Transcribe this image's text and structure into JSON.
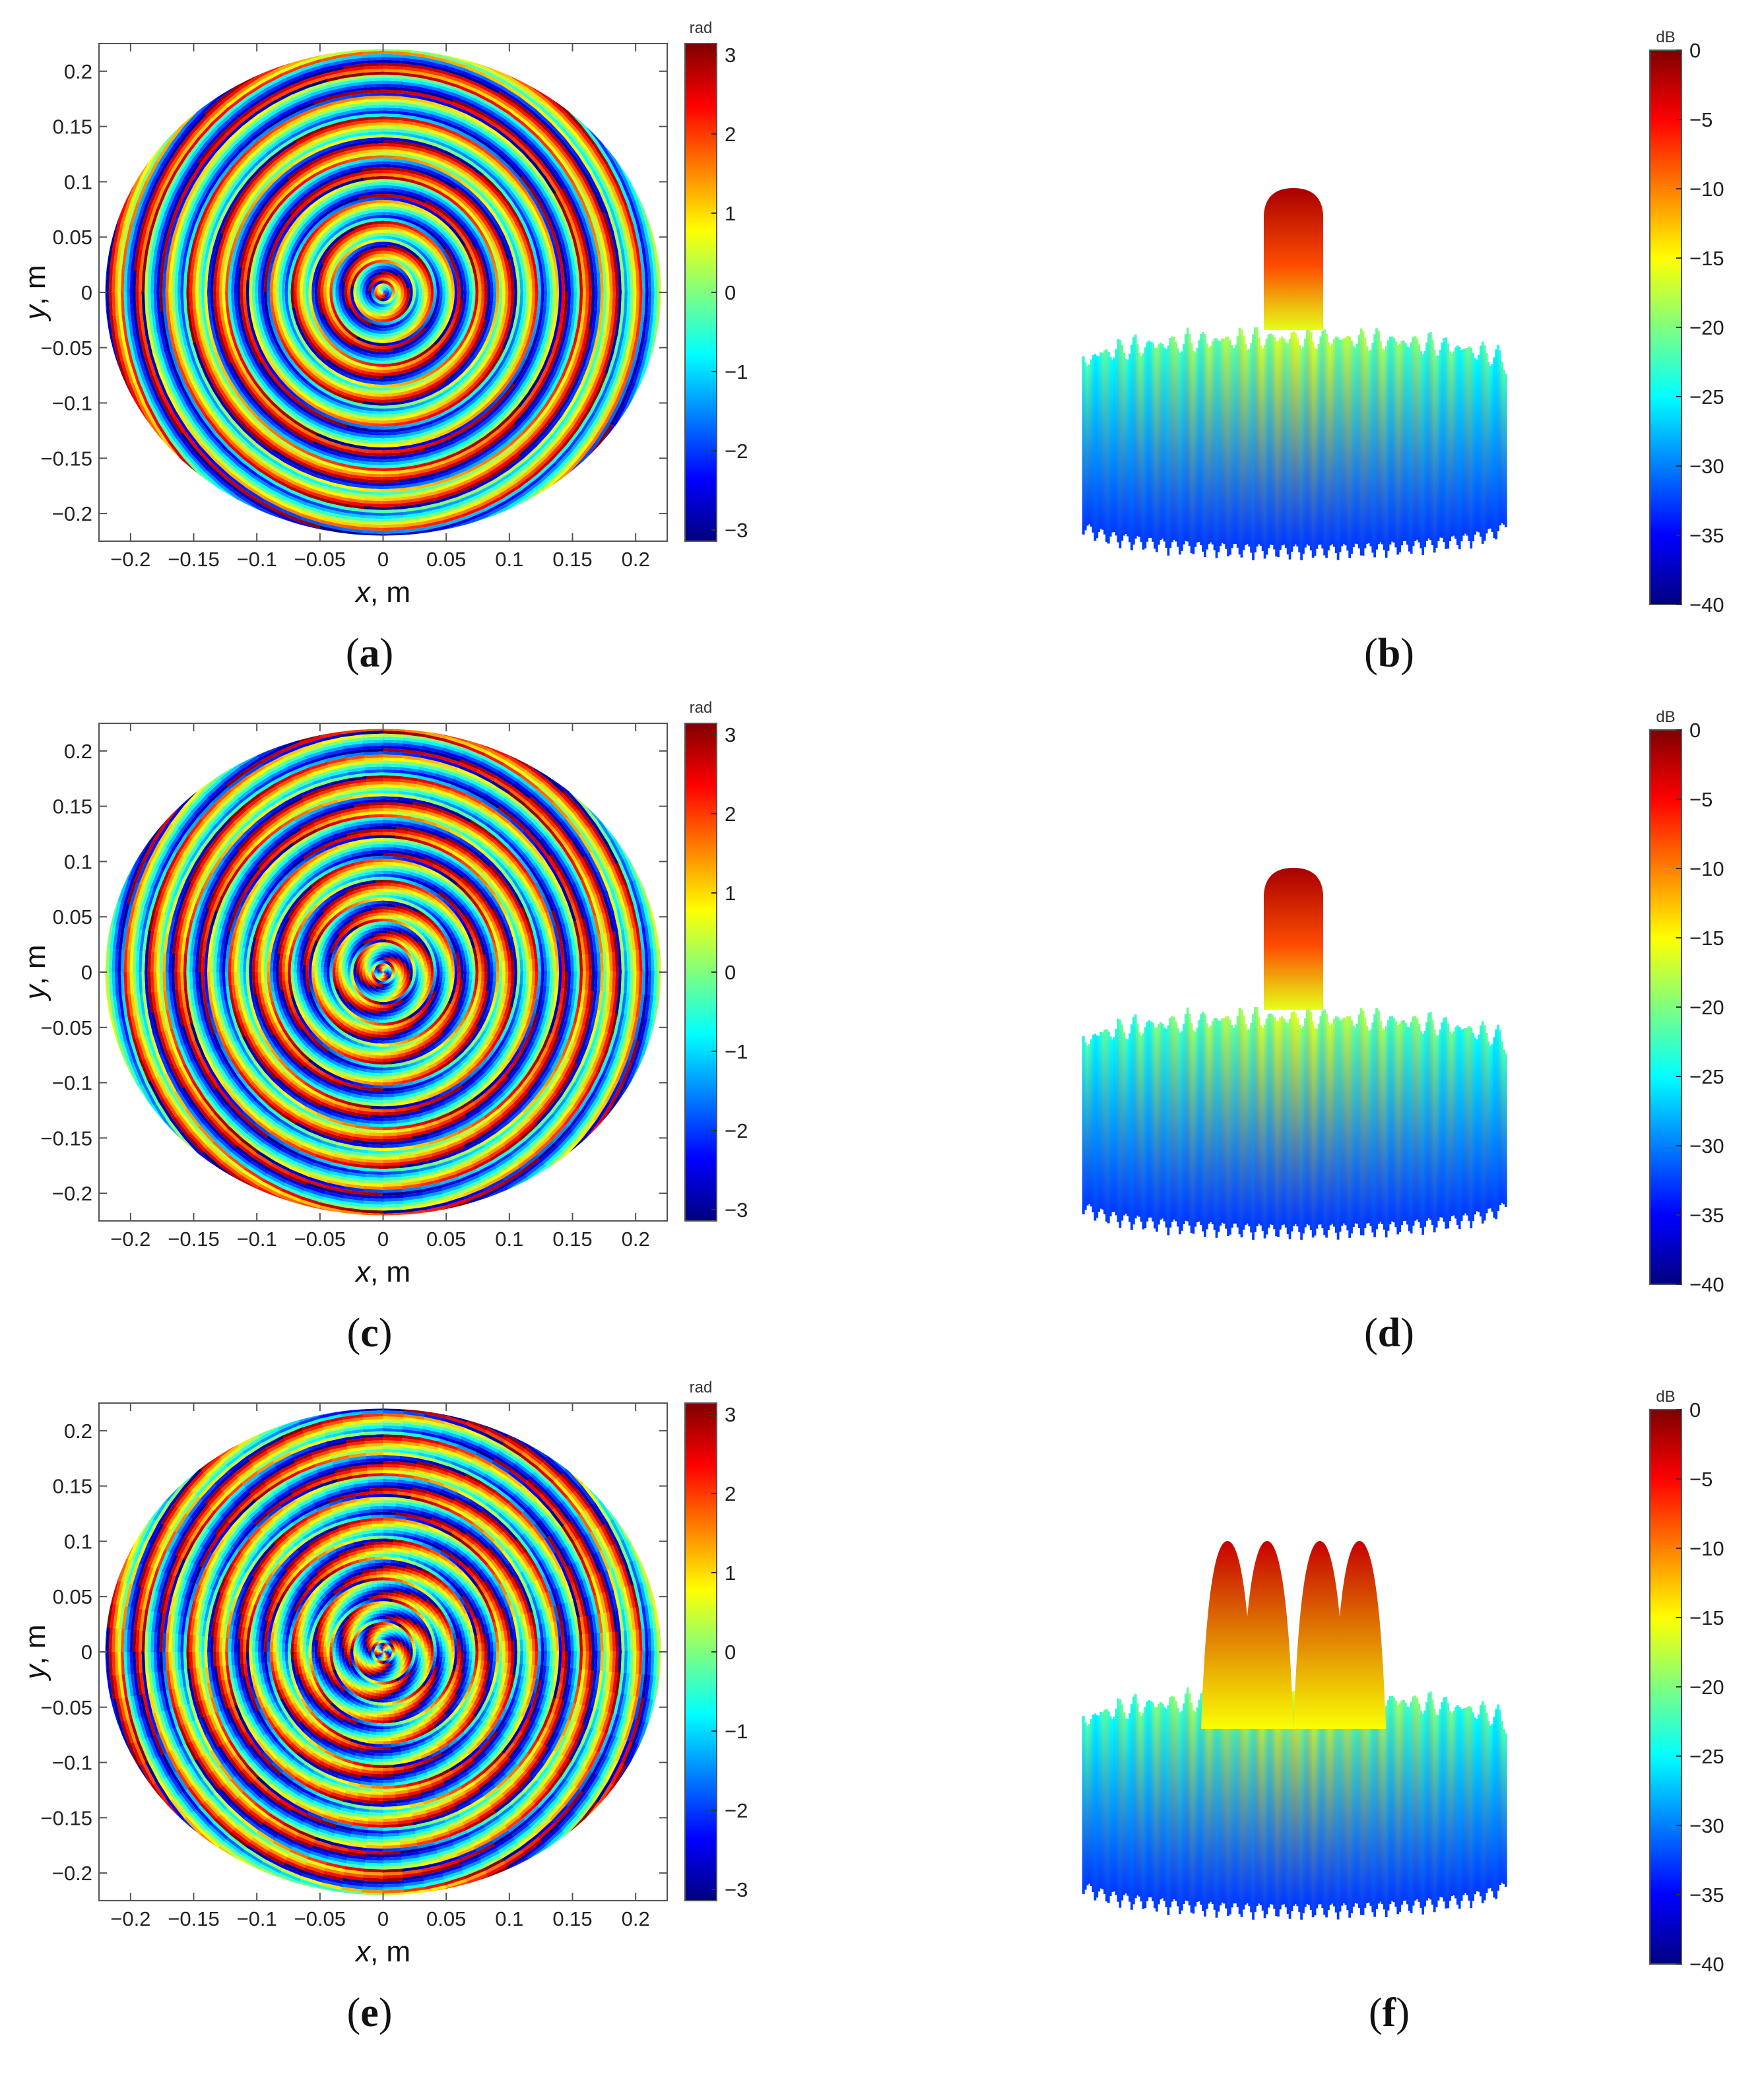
{
  "colors": {
    "jet": [
      "#00007f",
      "#0000ff",
      "#007fff",
      "#00ffff",
      "#7fff7f",
      "#ffff00",
      "#ff7f00",
      "#ff0000",
      "#7f0000"
    ],
    "axis": "#555555",
    "text": "#222222"
  },
  "chart_data": [
    {
      "type": "heatmap",
      "panel_label": "a",
      "xlabel_var": "x",
      "xlabel_unit": ", m",
      "ylabel_var": "y",
      "ylabel_unit": ", m",
      "xlim": [
        -0.225,
        0.225
      ],
      "ylim": [
        -0.225,
        0.225
      ],
      "xticks": [
        "-0.2",
        "-0.15",
        "-0.1",
        "-0.05",
        "0",
        "0.05",
        "0.1",
        "0.15",
        "0.2"
      ],
      "yticks": [
        "0.2",
        "0.15",
        "0.1",
        "0.05",
        "0",
        "-0.05",
        "-0.1",
        "-0.15",
        "-0.2"
      ],
      "colorbar_unit": "rad",
      "colorbar_range": [
        -3.14159,
        3.14159
      ],
      "colorbar_ticks": [
        "3",
        "2",
        "1",
        "0",
        "-1",
        "-2",
        "-3"
      ],
      "aperture_radius_m": 0.22,
      "spiral_arms": 1
    },
    {
      "type": "surface",
      "panel_label": "b",
      "colorbar_unit": "dB",
      "colorbar_range": [
        -40,
        0
      ],
      "colorbar_ticks": [
        "0",
        "-5",
        "-10",
        "-15",
        "-20",
        "-25",
        "-30",
        "-35",
        "-40"
      ],
      "peak_lobes": 1
    },
    {
      "type": "heatmap",
      "panel_label": "c",
      "xlabel_var": "x",
      "xlabel_unit": ", m",
      "ylabel_var": "y",
      "ylabel_unit": ", m",
      "xlim": [
        -0.225,
        0.225
      ],
      "ylim": [
        -0.225,
        0.225
      ],
      "xticks": [
        "-0.2",
        "-0.15",
        "-0.1",
        "-0.05",
        "0",
        "0.05",
        "0.1",
        "0.15",
        "0.2"
      ],
      "yticks": [
        "0.2",
        "0.15",
        "0.1",
        "0.05",
        "0",
        "-0.05",
        "-0.1",
        "-0.15",
        "-0.2"
      ],
      "colorbar_unit": "rad",
      "colorbar_range": [
        -3.14159,
        3.14159
      ],
      "colorbar_ticks": [
        "3",
        "2",
        "1",
        "0",
        "-1",
        "-2",
        "-3"
      ],
      "aperture_radius_m": 0.22,
      "spiral_arms": 2
    },
    {
      "type": "surface",
      "panel_label": "d",
      "colorbar_unit": "dB",
      "colorbar_range": [
        -40,
        0
      ],
      "colorbar_ticks": [
        "0",
        "-5",
        "-10",
        "-15",
        "-20",
        "-25",
        "-30",
        "-35",
        "-40"
      ],
      "peak_lobes": 1
    },
    {
      "type": "heatmap",
      "panel_label": "e",
      "xlabel_var": "x",
      "xlabel_unit": ", m",
      "ylabel_var": "y",
      "ylabel_unit": ", m",
      "xlim": [
        -0.225,
        0.225
      ],
      "ylim": [
        -0.225,
        0.225
      ],
      "xticks": [
        "-0.2",
        "-0.15",
        "-0.1",
        "-0.05",
        "0",
        "0.05",
        "0.1",
        "0.15",
        "0.2"
      ],
      "yticks": [
        "0.2",
        "0.15",
        "0.1",
        "0.05",
        "0",
        "-0.05",
        "-0.1",
        "-0.15",
        "-0.2"
      ],
      "colorbar_unit": "rad",
      "colorbar_range": [
        -3.14159,
        3.14159
      ],
      "colorbar_ticks": [
        "3",
        "2",
        "1",
        "0",
        "-1",
        "-2",
        "-3"
      ],
      "aperture_radius_m": 0.22,
      "spiral_arms": 3
    },
    {
      "type": "surface",
      "panel_label": "f",
      "colorbar_unit": "dB",
      "colorbar_range": [
        -40,
        0
      ],
      "colorbar_ticks": [
        "0",
        "-5",
        "-10",
        "-15",
        "-20",
        "-25",
        "-30",
        "-35",
        "-40"
      ],
      "peak_lobes": 4
    }
  ]
}
